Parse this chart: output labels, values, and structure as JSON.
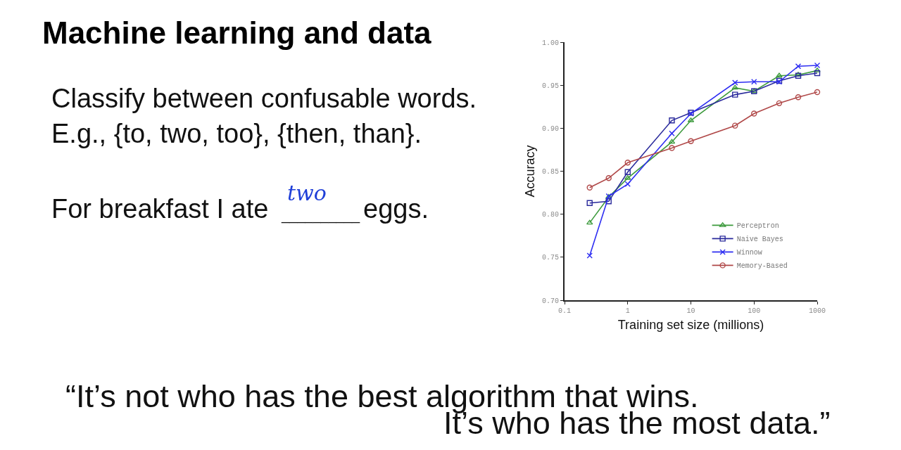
{
  "chart_data": {
    "type": "line",
    "title": "Machine learning and data",
    "xlabel": "Training set size (millions)",
    "ylabel": "Accuracy",
    "annotations": [
      "Classify between confusable words.",
      "E.g., {to, two, too}, {then, than}.",
      "For breakfast I ate",
      "__________",
      "two",
      "eggs.",
      "“It’s not who has the best algorithm that wins.",
      "It’s who has the most data.”"
    ],
    "x": [
      0.25,
      0.5,
      1,
      5,
      10,
      50,
      100,
      250,
      500,
      1000
    ],
    "series": [
      {
        "name": "Perceptron",
        "color": "#3c9a3c",
        "marker": "triangle",
        "values": [
          0.79,
          0.82,
          0.842,
          0.884,
          0.909,
          0.947,
          0.943,
          0.961,
          0.962,
          0.967
        ]
      },
      {
        "name": "Naive Bayes",
        "color": "#2b2b9c",
        "marker": "square",
        "values": [
          0.813,
          0.815,
          0.849,
          0.909,
          0.918,
          0.939,
          0.943,
          0.955,
          0.961,
          0.964
        ]
      },
      {
        "name": "Winnow",
        "color": "#2e2ef2",
        "marker": "cross",
        "values": [
          0.752,
          0.821,
          0.835,
          0.894,
          0.917,
          0.953,
          0.954,
          0.954,
          0.972,
          0.973
        ]
      },
      {
        "name": "Memory-Based",
        "color": "#b04848",
        "marker": "circle",
        "values": [
          0.831,
          0.842,
          0.86,
          0.877,
          0.885,
          0.903,
          0.917,
          0.929,
          0.936,
          0.942
        ]
      }
    ],
    "log": "x",
    "xlim": [
      0.1,
      1000
    ],
    "xticks": [
      0.1,
      1,
      10,
      100,
      1000
    ],
    "ylim": [
      0.7,
      1.0
    ],
    "yticks": [
      {
        "value": 0.7,
        "label": "0.70"
      },
      0.75,
      {
        "value": 0.8,
        "label": "0.80"
      },
      0.85,
      {
        "value": 0.9,
        "label": "0.90"
      },
      0.95,
      {
        "value": 1.0,
        "label": "1.00"
      }
    ],
    "legend": "bottom right",
    "line_style": "solid"
  }
}
